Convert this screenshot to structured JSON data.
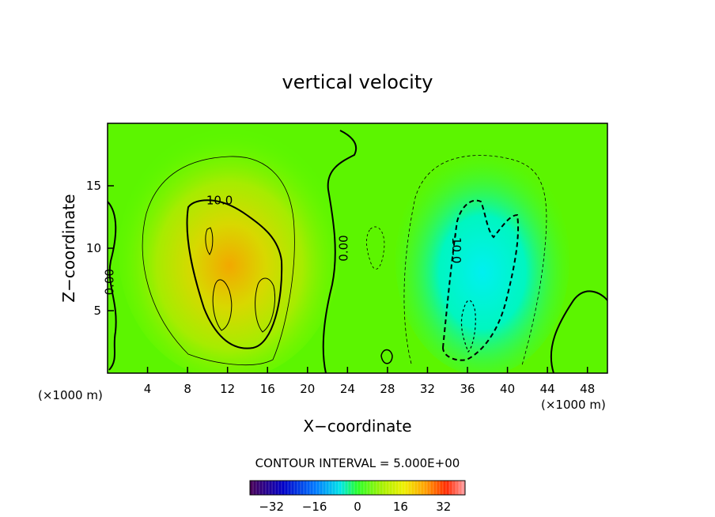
{
  "chart_data": {
    "type": "heatmap",
    "title": "vertical velocity",
    "xlabel": "X−coordinate",
    "ylabel": "Z−coordinate",
    "x_unit_left": "(×1000 m)",
    "x_unit_right": "(×1000 m)",
    "xlim": [
      0,
      50
    ],
    "ylim": [
      0,
      20
    ],
    "x_ticks": [
      4,
      8,
      12,
      16,
      20,
      24,
      28,
      32,
      36,
      40,
      44,
      48
    ],
    "y_ticks": [
      5,
      10,
      15
    ],
    "contour_interval_text": "CONTOUR INTERVAL = 5.000E+00",
    "contour_labels": [
      {
        "text": "10.0",
        "x": 11.2,
        "z": 13.5,
        "rotate": 0
      },
      {
        "text": "0.00",
        "x": 24.0,
        "z": 10.0,
        "rotate": -90
      },
      {
        "text": "-10.0",
        "x": 34.5,
        "z": 10.0,
        "rotate": 90
      },
      {
        "text": "0.00",
        "x": 0.6,
        "z": 7.3,
        "rotate": -90
      }
    ],
    "features": [
      {
        "kind": "updraft",
        "center_x": 13.0,
        "center_z": 9.0,
        "max_value": 20
      },
      {
        "kind": "downdraft",
        "center_x": 36.0,
        "center_z": 8.0,
        "min_value": -15
      }
    ],
    "colorbar": {
      "min": -40,
      "max": 40,
      "tick_values": [
        -32,
        -16,
        0,
        16,
        32
      ],
      "tick_labels": [
        "−32",
        "−16",
        "0",
        "16",
        "32"
      ]
    },
    "legend": "none",
    "grid": false
  }
}
